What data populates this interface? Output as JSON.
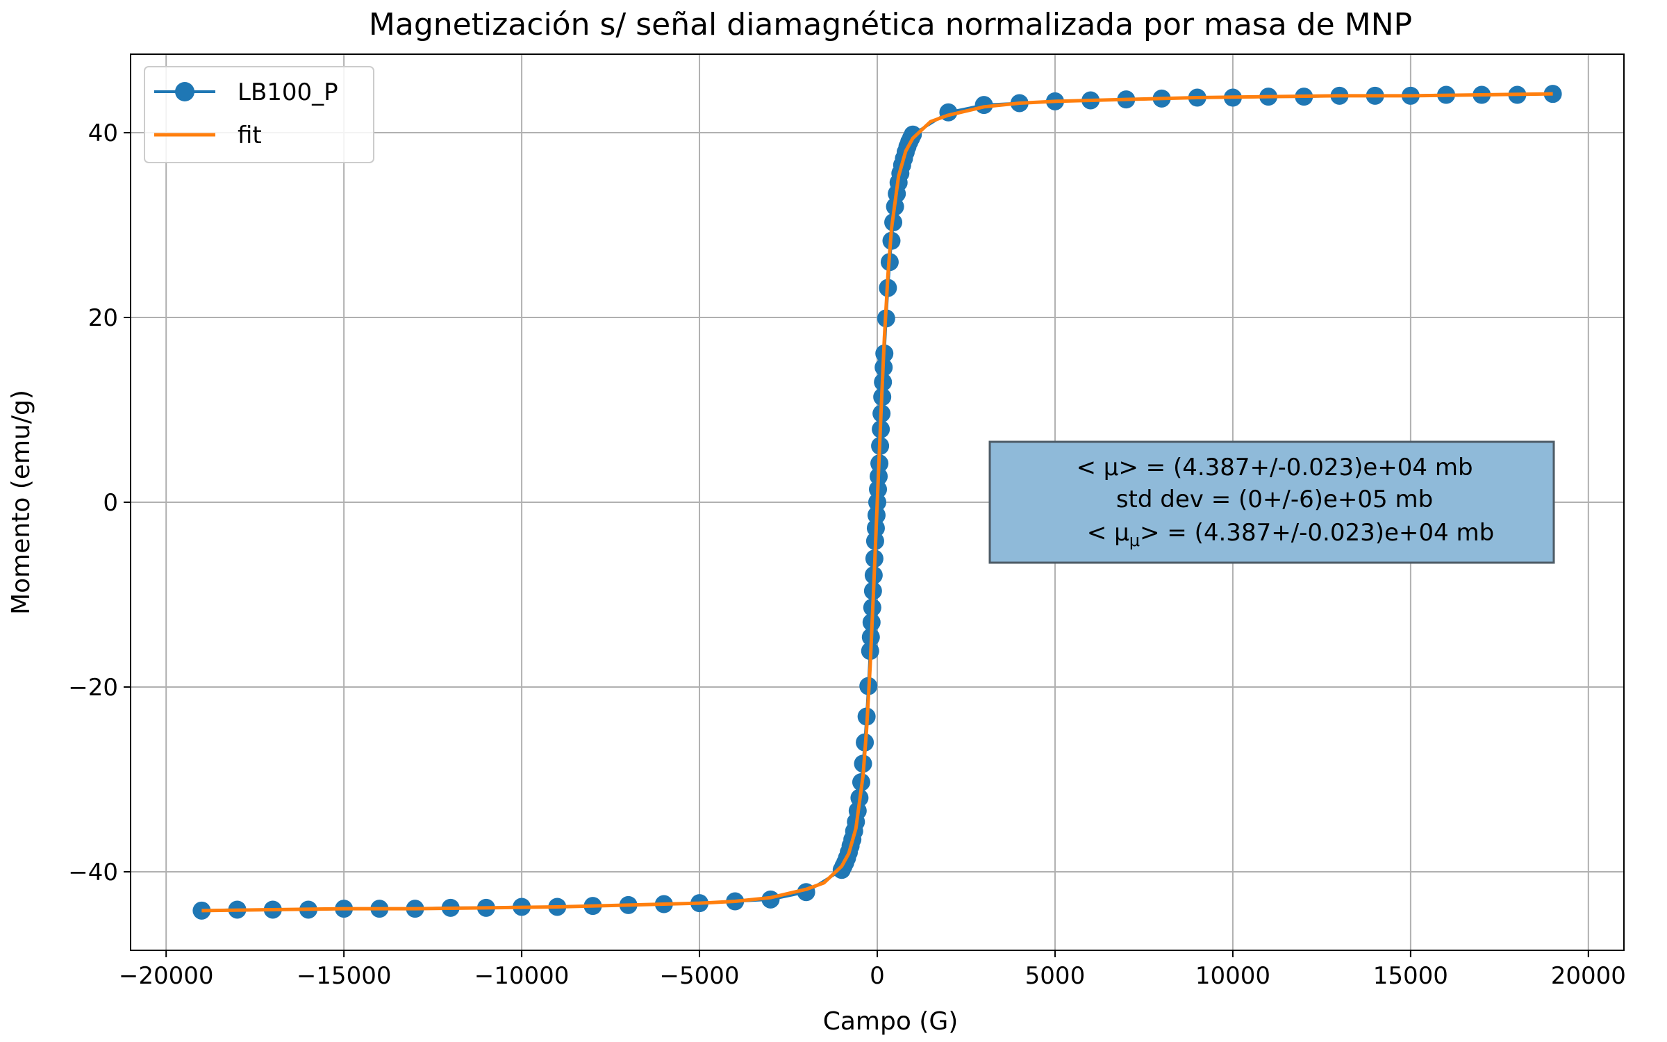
{
  "chart_data": {
    "type": "scatter",
    "title": "Magnetización s/ señal diamagnética normalizada por masa de MNP",
    "xlabel": "Campo (G)",
    "ylabel": "Momento (emu/g)",
    "xlim": [
      -21000,
      21000
    ],
    "ylim": [
      -48.5,
      48.5
    ],
    "xticks": [
      -20000,
      -15000,
      -10000,
      -5000,
      0,
      5000,
      10000,
      15000,
      20000
    ],
    "xtick_labels": [
      "−20000",
      "−15000",
      "−10000",
      "−5000",
      "0",
      "5000",
      "10000",
      "15000",
      "20000"
    ],
    "yticks": [
      -40,
      -20,
      0,
      20,
      40
    ],
    "ytick_labels": [
      "−40",
      "−20",
      "0",
      "20",
      "40"
    ],
    "grid": true,
    "legend_position": "top-left",
    "colors": {
      "data": "#1f77b4",
      "fit": "#ff7f0e",
      "annotation_box": "#8fbad9",
      "annotation_border": "#4d5b66"
    },
    "series": [
      {
        "name": "LB100_P",
        "style": "line-with-markers",
        "x": [
          -19000,
          -18000,
          -17000,
          -16000,
          -15000,
          -14000,
          -13000,
          -12000,
          -11000,
          -10000,
          -9000,
          -8000,
          -7000,
          -6000,
          -5000,
          -4000,
          -3000,
          -2000,
          -1000,
          -950,
          -900,
          -850,
          -800,
          -750,
          -700,
          -650,
          -600,
          -550,
          -500,
          -450,
          -400,
          -350,
          -300,
          -250,
          -200,
          -180,
          -160,
          -140,
          -120,
          -100,
          -80,
          -60,
          -40,
          -20,
          0,
          20,
          40,
          60,
          80,
          100,
          120,
          140,
          160,
          180,
          200,
          250,
          300,
          350,
          400,
          450,
          500,
          550,
          600,
          650,
          700,
          750,
          800,
          850,
          900,
          950,
          1000,
          2000,
          3000,
          4000,
          5000,
          6000,
          7000,
          8000,
          9000,
          10000,
          11000,
          12000,
          13000,
          14000,
          15000,
          16000,
          17000,
          18000,
          19000
        ],
        "y": [
          -44.2,
          -44.1,
          -44.1,
          -44.1,
          -44.0,
          -44.0,
          -44.0,
          -43.9,
          -43.9,
          -43.8,
          -43.8,
          -43.7,
          -43.6,
          -43.5,
          -43.4,
          -43.2,
          -43.0,
          -42.2,
          -39.8,
          -39.4,
          -39.0,
          -38.5,
          -37.9,
          -37.2,
          -36.5,
          -35.6,
          -34.6,
          -33.4,
          -32.0,
          -30.3,
          -28.3,
          -26.0,
          -23.2,
          -19.9,
          -16.1,
          -14.6,
          -13.0,
          -11.4,
          -9.6,
          -7.9,
          -6.1,
          -4.2,
          -2.8,
          -1.4,
          0.0,
          1.4,
          2.8,
          4.2,
          6.1,
          7.9,
          9.6,
          11.4,
          13.0,
          14.6,
          16.1,
          19.9,
          23.2,
          26.0,
          28.3,
          30.3,
          32.0,
          33.4,
          34.6,
          35.6,
          36.5,
          37.2,
          37.9,
          38.5,
          39.0,
          39.4,
          39.8,
          42.2,
          43.0,
          43.2,
          43.4,
          43.5,
          43.6,
          43.7,
          43.8,
          43.8,
          43.9,
          43.9,
          44.0,
          44.0,
          44.0,
          44.1,
          44.1,
          44.1,
          44.2
        ]
      },
      {
        "name": "fit",
        "style": "line",
        "x": [
          -19000,
          -17000,
          -15000,
          -13000,
          -11000,
          -9000,
          -7000,
          -5000,
          -4000,
          -3000,
          -2000,
          -1500,
          -1000,
          -800,
          -600,
          -400,
          -300,
          -200,
          -100,
          0,
          100,
          200,
          300,
          400,
          600,
          800,
          1000,
          1500,
          2000,
          3000,
          4000,
          5000,
          7000,
          9000,
          11000,
          13000,
          15000,
          17000,
          19000
        ],
        "y": [
          -44.2,
          -44.1,
          -44.0,
          -44.0,
          -43.9,
          -43.8,
          -43.6,
          -43.4,
          -43.2,
          -42.8,
          -41.9,
          -41.2,
          -39.4,
          -38.0,
          -35.3,
          -29.6,
          -24.6,
          -17.8,
          -9.2,
          0.0,
          9.2,
          17.8,
          24.6,
          29.6,
          35.3,
          38.0,
          39.4,
          41.2,
          41.9,
          42.8,
          43.2,
          43.4,
          43.6,
          43.8,
          43.9,
          44.0,
          44.0,
          44.1,
          44.2
        ]
      }
    ],
    "annotation": {
      "line1": "< μ> = (4.387+/-0.023)e+04 mb",
      "line2": "std dev = (0+/-6)e+05 mb",
      "line3_pre": "< μ",
      "line3_sub": "μ",
      "line3_post": "> = (4.387+/-0.023)e+04 mb"
    }
  }
}
